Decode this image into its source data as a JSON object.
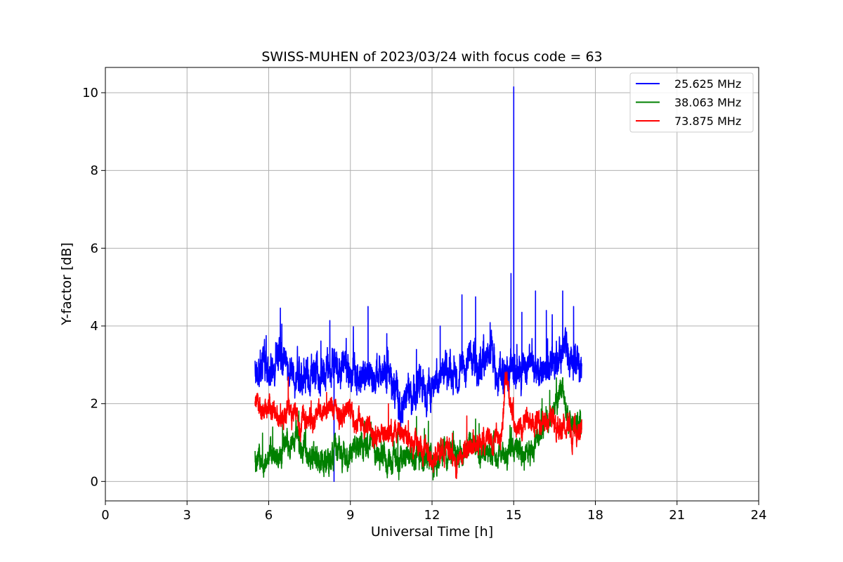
{
  "chart_data": {
    "type": "line",
    "title": "SWISS-MUHEN of 2023/03/24 with focus code = 63",
    "xlabel": "Universal Time [h]",
    "ylabel": "Y-factor [dB]",
    "xlim": [
      0,
      24
    ],
    "ylim": [
      -0.5,
      10.65
    ],
    "xticks": [
      0,
      3,
      6,
      9,
      12,
      15,
      18,
      21,
      24
    ],
    "yticks": [
      0,
      2,
      4,
      6,
      8,
      10
    ],
    "grid": true,
    "legend_position": "top-right",
    "series": [
      {
        "name": "25.625 MHz",
        "color": "#0000ff",
        "x": [
          5.5,
          6.0,
          6.5,
          7.0,
          7.5,
          8.0,
          8.5,
          9.0,
          9.5,
          10.0,
          10.5,
          10.8,
          11.0,
          11.5,
          12.0,
          12.5,
          13.0,
          13.5,
          14.0,
          14.5,
          15.0,
          15.5,
          16.0,
          16.5,
          17.0,
          17.5
        ],
        "values": [
          2.9,
          3.0,
          3.1,
          2.7,
          2.9,
          2.8,
          2.9,
          3.0,
          2.8,
          2.7,
          2.6,
          1.8,
          2.0,
          2.3,
          2.6,
          2.8,
          3.0,
          3.1,
          3.0,
          2.9,
          2.8,
          3.0,
          2.9,
          3.2,
          3.3,
          3.0
        ],
        "peaks": [
          {
            "x": 15.0,
            "y": 10.15
          },
          {
            "x": 14.9,
            "y": 5.35
          },
          {
            "x": 16.8,
            "y": 4.9
          },
          {
            "x": 15.8,
            "y": 4.9
          },
          {
            "x": 13.1,
            "y": 4.8
          },
          {
            "x": 13.6,
            "y": 4.75
          },
          {
            "x": 9.65,
            "y": 4.5
          },
          {
            "x": 17.2,
            "y": 4.5
          },
          {
            "x": 16.2,
            "y": 4.4
          },
          {
            "x": 15.3,
            "y": 4.35
          },
          {
            "x": 12.3,
            "y": 4.0
          },
          {
            "x": 8.4,
            "y": 0.0
          }
        ]
      },
      {
        "name": "38.063 MHz",
        "color": "#008000",
        "x": [
          5.5,
          6.0,
          6.5,
          7.0,
          7.5,
          8.0,
          8.5,
          9.0,
          9.5,
          10.0,
          10.5,
          11.0,
          11.5,
          12.0,
          12.5,
          13.0,
          13.5,
          14.0,
          14.5,
          15.0,
          15.5,
          15.8,
          16.0,
          16.5,
          16.7,
          17.0,
          17.5
        ],
        "values": [
          0.8,
          0.7,
          0.9,
          1.0,
          0.8,
          0.6,
          0.7,
          0.8,
          0.9,
          0.8,
          0.6,
          0.7,
          0.7,
          0.5,
          0.7,
          0.8,
          0.9,
          0.8,
          0.7,
          0.8,
          0.7,
          0.8,
          1.5,
          1.9,
          2.4,
          1.6,
          1.5
        ]
      },
      {
        "name": "73.875 MHz",
        "color": "#ff0000",
        "x": [
          5.5,
          6.0,
          6.5,
          7.0,
          7.5,
          8.0,
          8.5,
          9.0,
          9.5,
          10.0,
          10.5,
          11.0,
          11.5,
          12.0,
          12.5,
          13.0,
          13.5,
          14.0,
          14.5,
          14.7,
          15.0,
          15.5,
          16.0,
          16.5,
          17.0,
          17.5
        ],
        "values": [
          2.0,
          1.9,
          1.7,
          1.6,
          1.5,
          1.9,
          1.8,
          1.7,
          1.5,
          1.3,
          1.2,
          1.2,
          1.0,
          0.6,
          0.9,
          0.6,
          1.0,
          1.2,
          1.1,
          2.6,
          1.5,
          1.5,
          1.5,
          1.4,
          1.3,
          1.3
        ]
      }
    ]
  }
}
